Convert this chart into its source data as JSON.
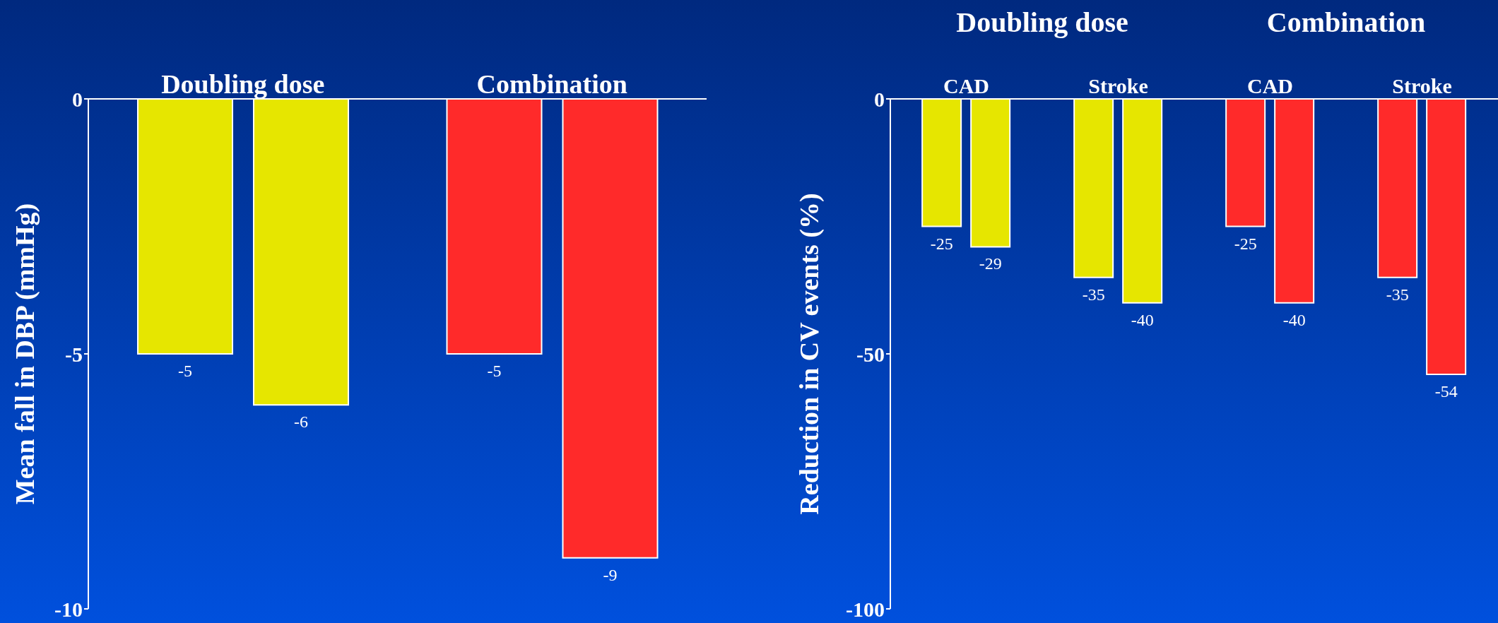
{
  "chart_data": [
    {
      "type": "bar",
      "ylabel": "Mean fall in DBP (mmHg)",
      "categories": [
        "Doubling dose",
        "Combination"
      ],
      "series": [
        {
          "values": [
            -5,
            -5
          ],
          "colors": [
            "#e6e600",
            "#ff2a2a"
          ]
        },
        {
          "values": [
            -6,
            -9
          ],
          "colors": [
            "#e6e600",
            "#ff2a2a"
          ]
        }
      ],
      "ylim": [
        -10,
        0
      ],
      "yticks": [
        -10,
        -5,
        0
      ],
      "data_labels": true
    },
    {
      "type": "bar",
      "ylabel": "Reduction in CV events (%)",
      "categories": [
        "CAD",
        "Stroke",
        "CAD",
        "Stroke"
      ],
      "annotations": [
        "Doubling dose",
        "Combination"
      ],
      "series": [
        {
          "values": [
            -25,
            -35,
            -25,
            -35
          ],
          "colors": [
            "#e6e600",
            "#e6e600",
            "#ff2a2a",
            "#ff2a2a"
          ]
        },
        {
          "values": [
            -29,
            -40,
            -40,
            -54
          ],
          "colors": [
            "#e6e600",
            "#e6e600",
            "#ff2a2a",
            "#ff2a2a"
          ]
        }
      ],
      "ylim": [
        -100,
        0
      ],
      "yticks": [
        -100,
        -50,
        0
      ],
      "data_labels": true
    }
  ]
}
